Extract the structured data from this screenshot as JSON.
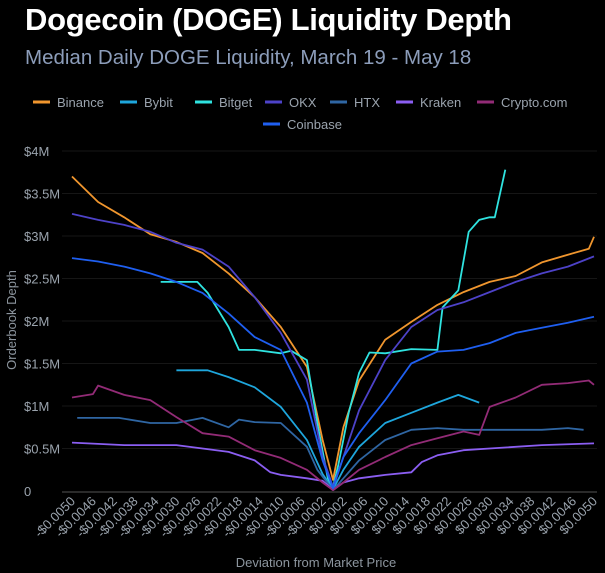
{
  "chart_data": {
    "type": "line",
    "title": "Dogecoin (DOGE) Liquidity Depth",
    "subtitle": "Median Daily DOGE Liquidity, March 19 - May 18",
    "xlabel": "Deviation from Market Price",
    "ylabel": "Orderbook Depth",
    "xlim": [
      -0.005,
      0.005
    ],
    "ylim": [
      0,
      4000000
    ],
    "y_ticks": [
      {
        "value": 0,
        "label": "0"
      },
      {
        "value": 500000,
        "label": "$0.5M"
      },
      {
        "value": 1000000,
        "label": "$1M"
      },
      {
        "value": 1500000,
        "label": "$1.5M"
      },
      {
        "value": 2000000,
        "label": "$2M"
      },
      {
        "value": 2500000,
        "label": "$2.5M"
      },
      {
        "value": 3000000,
        "label": "$3M"
      },
      {
        "value": 3500000,
        "label": "$3.5M"
      },
      {
        "value": 4000000,
        "label": "$4M"
      }
    ],
    "x_ticks": [
      {
        "value": -0.005,
        "label": "-$0.0050"
      },
      {
        "value": -0.0046,
        "label": "-$0.0046"
      },
      {
        "value": -0.0042,
        "label": "-$0.0042"
      },
      {
        "value": -0.0038,
        "label": "-$0.0038"
      },
      {
        "value": -0.0034,
        "label": "-$0.0034"
      },
      {
        "value": -0.003,
        "label": "-$0.0030"
      },
      {
        "value": -0.0026,
        "label": "-$0.0026"
      },
      {
        "value": -0.0022,
        "label": "-$0.0022"
      },
      {
        "value": -0.0018,
        "label": "-$0.0018"
      },
      {
        "value": -0.0014,
        "label": "-$0.0014"
      },
      {
        "value": -0.001,
        "label": "-$0.0010"
      },
      {
        "value": -0.0006,
        "label": "-$0.0006"
      },
      {
        "value": -0.0002,
        "label": "-$0.0002"
      },
      {
        "value": 0.0002,
        "label": "$0.0002"
      },
      {
        "value": 0.0006,
        "label": "$0.0006"
      },
      {
        "value": 0.001,
        "label": "$0.0010"
      },
      {
        "value": 0.0014,
        "label": "$0.0014"
      },
      {
        "value": 0.0018,
        "label": "$0.0018"
      },
      {
        "value": 0.0022,
        "label": "$0.0022"
      },
      {
        "value": 0.0026,
        "label": "$0.0026"
      },
      {
        "value": 0.003,
        "label": "$0.0030"
      },
      {
        "value": 0.0034,
        "label": "$0.0034"
      },
      {
        "value": 0.0038,
        "label": "$0.0038"
      },
      {
        "value": 0.0042,
        "label": "$0.0042"
      },
      {
        "value": 0.0046,
        "label": "$0.0046"
      },
      {
        "value": 0.005,
        "label": "$0.0050"
      }
    ],
    "grid": true,
    "legend_placement": "top",
    "series": [
      {
        "name": "Binance",
        "color": "#f0962e",
        "x": [
          -0.005,
          -0.0045,
          -0.004,
          -0.0035,
          -0.003,
          -0.0025,
          -0.002,
          -0.0015,
          -0.001,
          -0.0005,
          -0.0002,
          0,
          0.0002,
          0.0005,
          0.001,
          0.0015,
          0.002,
          0.0025,
          0.003,
          0.0035,
          0.004,
          0.0045,
          0.0049,
          0.005
        ],
        "y": [
          3700000,
          3400000,
          3220000,
          3020000,
          2930000,
          2800000,
          2560000,
          2280000,
          1930000,
          1460000,
          600000,
          130000,
          750000,
          1300000,
          1780000,
          1990000,
          2190000,
          2340000,
          2460000,
          2530000,
          2690000,
          2780000,
          2850000,
          2990000
        ]
      },
      {
        "name": "Bybit",
        "color": "#1ea6dc",
        "x": [
          -0.003,
          -0.0024,
          -0.002,
          -0.0015,
          -0.001,
          -0.0005,
          -0.0002,
          0,
          0.0002,
          0.0005,
          0.001,
          0.0015,
          0.002,
          0.0024,
          0.0028
        ],
        "y": [
          1420000,
          1420000,
          1340000,
          1220000,
          990000,
          600000,
          200000,
          20000,
          250000,
          520000,
          800000,
          920000,
          1040000,
          1130000,
          1040000
        ]
      },
      {
        "name": "Bitget",
        "color": "#2fe3e0",
        "x": [
          -0.0033,
          -0.0026,
          -0.0024,
          -0.002,
          -0.0018,
          -0.0015,
          -0.001,
          -0.0008,
          -0.0005,
          -0.0003,
          -0.0001,
          0,
          0.0001,
          0.0003,
          0.0005,
          0.0007,
          0.001,
          0.0015,
          0.002,
          0.0021,
          0.0024,
          0.0026,
          0.0028,
          0.003,
          0.0031,
          0.0033
        ],
        "y": [
          2460000,
          2460000,
          2330000,
          1930000,
          1660000,
          1660000,
          1620000,
          1650000,
          1540000,
          800000,
          150000,
          50000,
          300000,
          920000,
          1390000,
          1630000,
          1620000,
          1670000,
          1660000,
          2160000,
          2360000,
          3050000,
          3190000,
          3220000,
          3220000,
          3780000
        ]
      },
      {
        "name": "OKX",
        "color": "#4d42c8",
        "x": [
          -0.005,
          -0.0045,
          -0.004,
          -0.0035,
          -0.003,
          -0.0025,
          -0.002,
          -0.0015,
          -0.001,
          -0.0005,
          -0.0002,
          0,
          0.0002,
          0.0005,
          0.001,
          0.0015,
          0.002,
          0.0025,
          0.003,
          0.0035,
          0.004,
          0.0045,
          0.005
        ],
        "y": [
          3260000,
          3190000,
          3130000,
          3050000,
          2920000,
          2840000,
          2640000,
          2280000,
          1860000,
          1310000,
          400000,
          50000,
          400000,
          950000,
          1540000,
          1930000,
          2130000,
          2220000,
          2340000,
          2460000,
          2560000,
          2640000,
          2760000
        ]
      },
      {
        "name": "HTX",
        "color": "#2f66a3",
        "x": [
          -0.0049,
          -0.0041,
          -0.0035,
          -0.003,
          -0.0025,
          -0.002,
          -0.0018,
          -0.0015,
          -0.001,
          -0.0005,
          -0.0003,
          0,
          0.0002,
          0.0005,
          0.001,
          0.0015,
          0.002,
          0.0025,
          0.003,
          0.0035,
          0.004,
          0.0045,
          0.0048
        ],
        "y": [
          860000,
          860000,
          800000,
          800000,
          860000,
          750000,
          840000,
          810000,
          800000,
          520000,
          250000,
          10000,
          150000,
          360000,
          600000,
          720000,
          740000,
          720000,
          720000,
          720000,
          720000,
          740000,
          720000
        ]
      },
      {
        "name": "Kraken",
        "color": "#8b5ef2",
        "x": [
          -0.005,
          -0.004,
          -0.003,
          -0.0025,
          -0.002,
          -0.0015,
          -0.0012,
          -0.001,
          -0.0005,
          -0.0002,
          0,
          0.0002,
          0.0005,
          0.001,
          0.0015,
          0.0017,
          0.002,
          0.0025,
          0.003,
          0.004,
          0.005
        ],
        "y": [
          570000,
          540000,
          540000,
          500000,
          460000,
          360000,
          220000,
          190000,
          150000,
          120000,
          10000,
          100000,
          150000,
          190000,
          220000,
          340000,
          420000,
          480000,
          500000,
          540000,
          560000
        ]
      },
      {
        "name": "Crypto.com",
        "color": "#922b76",
        "x": [
          -0.005,
          -0.0046,
          -0.0045,
          -0.004,
          -0.0035,
          -0.003,
          -0.0025,
          -0.002,
          -0.0015,
          -0.001,
          -0.0005,
          -0.0002,
          0,
          0.0002,
          0.0005,
          0.001,
          0.0015,
          0.002,
          0.0025,
          0.0028,
          0.003,
          0.0035,
          0.004,
          0.0045,
          0.0049,
          0.005
        ],
        "y": [
          1100000,
          1140000,
          1240000,
          1130000,
          1070000,
          870000,
          680000,
          640000,
          480000,
          390000,
          250000,
          100000,
          10000,
          100000,
          250000,
          400000,
          540000,
          620000,
          700000,
          660000,
          990000,
          1100000,
          1250000,
          1270000,
          1300000,
          1250000
        ]
      },
      {
        "name": "Coinbase",
        "color": "#1f5ff0",
        "x": [
          -0.005,
          -0.0045,
          -0.004,
          -0.0035,
          -0.003,
          -0.0025,
          -0.002,
          -0.0015,
          -0.001,
          -0.0005,
          -0.0002,
          0,
          0.0002,
          0.0005,
          0.001,
          0.0015,
          0.002,
          0.0025,
          0.003,
          0.0035,
          0.004,
          0.0045,
          0.005
        ],
        "y": [
          2740000,
          2700000,
          2640000,
          2560000,
          2460000,
          2330000,
          2090000,
          1810000,
          1660000,
          1040000,
          360000,
          30000,
          400000,
          680000,
          1070000,
          1500000,
          1640000,
          1660000,
          1740000,
          1860000,
          1920000,
          1980000,
          2050000
        ]
      }
    ]
  }
}
